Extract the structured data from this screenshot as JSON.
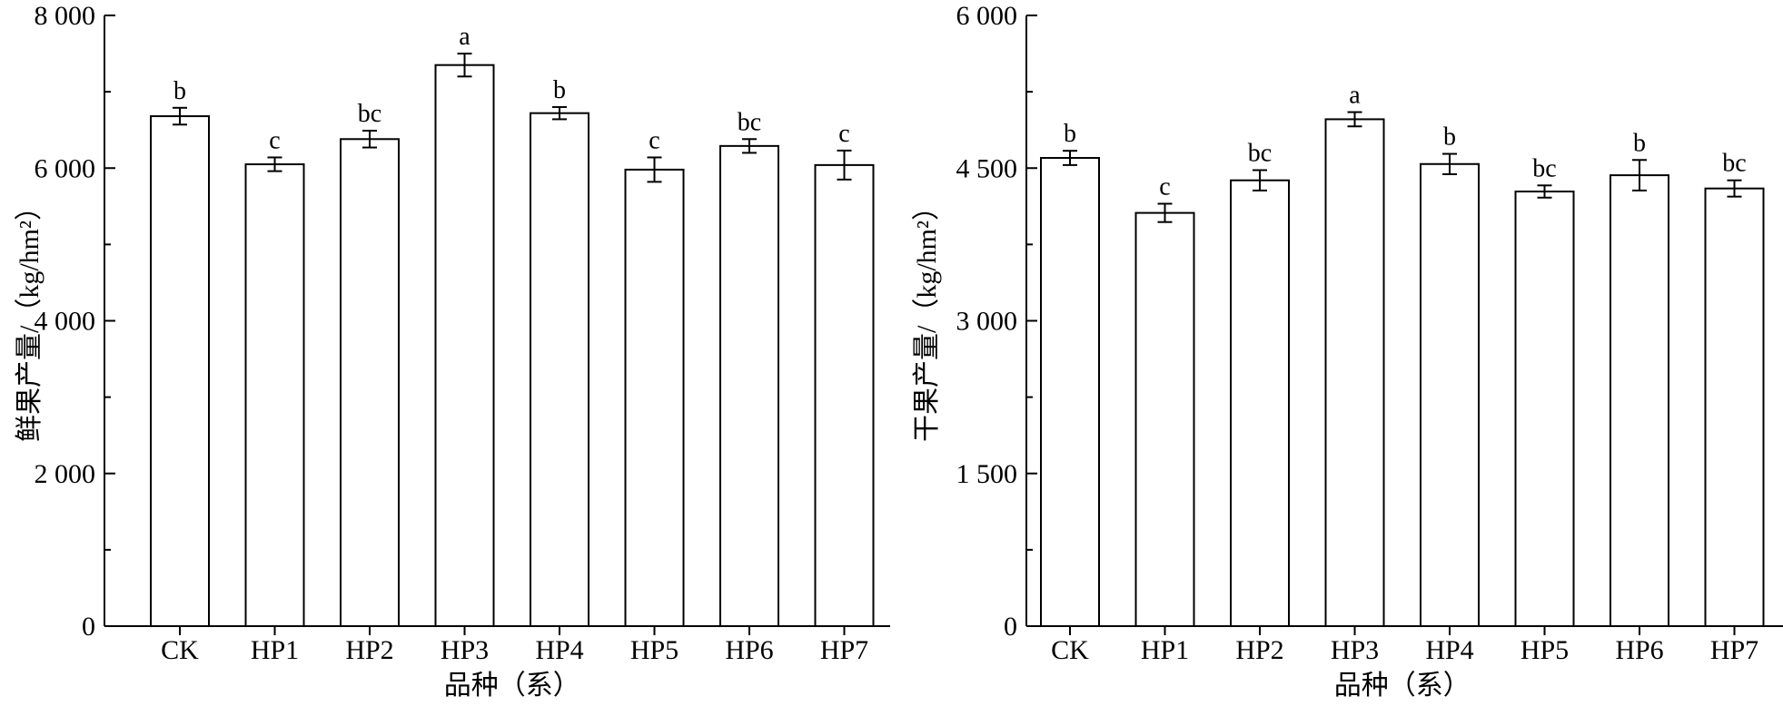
{
  "chart_data": [
    {
      "type": "bar",
      "categories": [
        "CK",
        "HP1",
        "HP2",
        "HP3",
        "HP4",
        "HP5",
        "HP6",
        "HP7"
      ],
      "values": [
        6680,
        6050,
        6380,
        7350,
        6720,
        5980,
        6290,
        6040
      ],
      "errors": [
        110,
        90,
        110,
        150,
        80,
        160,
        90,
        190
      ],
      "significance": [
        "b",
        "c",
        "bc",
        "a",
        "b",
        "c",
        "bc",
        "c"
      ],
      "ylim": [
        0,
        8000
      ],
      "yticks": [
        0,
        2000,
        4000,
        6000,
        8000
      ],
      "ytick_labels": [
        "0",
        "2 000",
        "4 000",
        "6 000",
        "8 000"
      ],
      "xlabel": "品种（系）",
      "ylabel": "鲜果产量/（kg/hm²）",
      "grid": false,
      "legend": "none"
    },
    {
      "type": "bar",
      "categories": [
        "CK",
        "HP1",
        "HP2",
        "HP3",
        "HP4",
        "HP5",
        "HP6",
        "HP7"
      ],
      "values": [
        4600,
        4060,
        4380,
        4980,
        4540,
        4270,
        4430,
        4300
      ],
      "errors": [
        70,
        90,
        100,
        70,
        100,
        60,
        150,
        80
      ],
      "significance": [
        "b",
        "c",
        "bc",
        "a",
        "b",
        "bc",
        "b",
        "bc"
      ],
      "ylim": [
        0,
        6000
      ],
      "yticks": [
        0,
        1500,
        3000,
        4500,
        6000
      ],
      "ytick_labels": [
        "0",
        "1 500",
        "3 000",
        "4 500",
        "6 000"
      ],
      "xlabel": "品种（系）",
      "ylabel": "干果产量/（kg/hm²）",
      "grid": false,
      "legend": "none"
    }
  ]
}
